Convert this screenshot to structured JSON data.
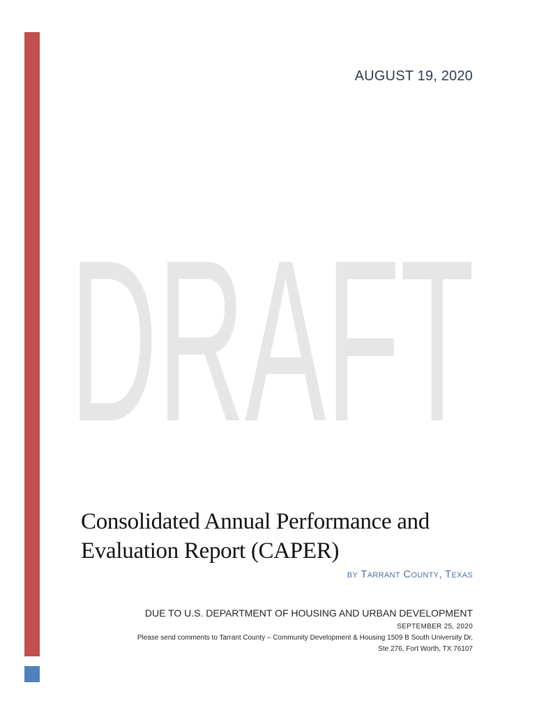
{
  "colors": {
    "accent_bar": "#c0504d",
    "accent_square": "#4f81bd",
    "watermark": "#e6e6e6",
    "byline": "#4f6fa8"
  },
  "header": {
    "date": "AUGUST 19, 2020"
  },
  "watermark": {
    "text": "DRAFT"
  },
  "title": {
    "line1": "Consolidated Annual Performance and",
    "line2": "Evaluation Report (CAPER)"
  },
  "byline": "by Tarrant County, Texas",
  "footer": {
    "due_to": "DUE TO U.S. DEPARTMENT OF HOUSING AND URBAN DEVELOPMENT",
    "due_date": "SEPTEMBER 25, 2020",
    "comments_line1": "Please send comments to  Tarrant County – Community Development & Housing  1509 B South University Dr,",
    "comments_line2": "Ste 276, Fort Worth, TX 76107"
  }
}
